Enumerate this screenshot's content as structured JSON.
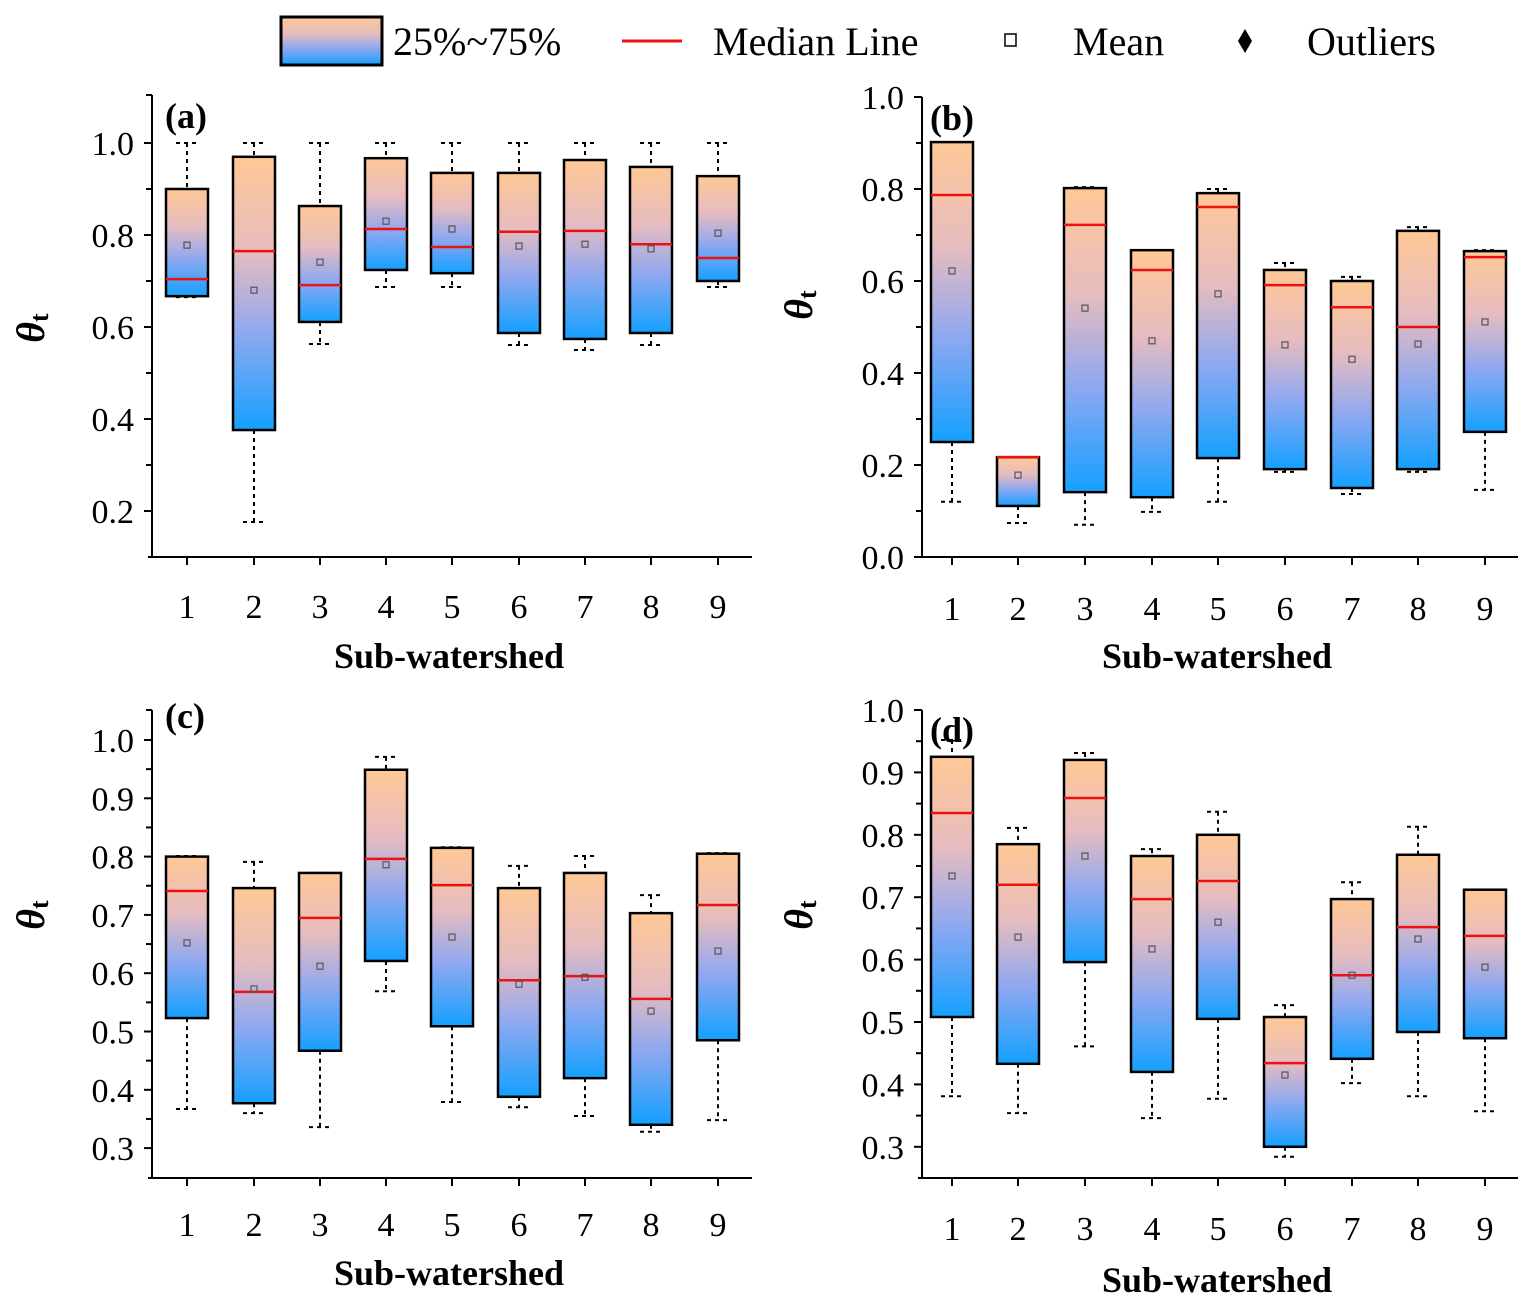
{
  "legend": {
    "items": [
      {
        "key": "box",
        "label": "25%~75%"
      },
      {
        "key": "median",
        "label": "Median Line"
      },
      {
        "key": "mean",
        "label": "Mean"
      },
      {
        "key": "outliers",
        "label": "Outliers"
      }
    ]
  },
  "colors": {
    "box_top": "#ffc896",
    "box_mid": "#e6bcc0",
    "box_lower": "#8ea8f0",
    "box_bottom": "#14a0ff",
    "median": "#ee1111",
    "box_stroke": "#000000",
    "whisker": "#000000",
    "mean_stroke": "#555555"
  },
  "chart_data": [
    {
      "type": "box",
      "panel_label": "(a)",
      "xlabel": "Sub-watershed",
      "ylabel": "θ",
      "ylabel_sub": "t",
      "categories": [
        "1",
        "2",
        "3",
        "4",
        "5",
        "6",
        "7",
        "8",
        "9"
      ],
      "ylim": [
        0.1,
        1.1
      ],
      "yticks": [
        0.2,
        0.4,
        0.6,
        0.8,
        1.0
      ],
      "ytick_labels": [
        "0.2",
        "0.4",
        "0.6",
        "0.8",
        "1.0"
      ],
      "minor_yticks": [
        0.3,
        0.5,
        0.7,
        0.9
      ],
      "boxes": [
        {
          "whisker_low": 0.665,
          "q1": 0.667,
          "median": 0.704,
          "mean": 0.778,
          "q3": 0.9,
          "whisker_high": 1.0
        },
        {
          "whisker_low": 0.176,
          "q1": 0.376,
          "median": 0.765,
          "mean": 0.68,
          "q3": 0.97,
          "whisker_high": 1.0
        },
        {
          "whisker_low": 0.563,
          "q1": 0.611,
          "median": 0.691,
          "mean": 0.741,
          "q3": 0.863,
          "whisker_high": 1.0
        },
        {
          "whisker_low": 0.687,
          "q1": 0.724,
          "median": 0.813,
          "mean": 0.83,
          "q3": 0.967,
          "whisker_high": 1.0
        },
        {
          "whisker_low": 0.687,
          "q1": 0.717,
          "median": 0.774,
          "mean": 0.813,
          "q3": 0.935,
          "whisker_high": 1.0
        },
        {
          "whisker_low": 0.561,
          "q1": 0.587,
          "median": 0.807,
          "mean": 0.776,
          "q3": 0.935,
          "whisker_high": 1.0
        },
        {
          "whisker_low": 0.55,
          "q1": 0.574,
          "median": 0.809,
          "mean": 0.78,
          "q3": 0.963,
          "whisker_high": 1.0
        },
        {
          "whisker_low": 0.561,
          "q1": 0.587,
          "median": 0.78,
          "mean": 0.77,
          "q3": 0.948,
          "whisker_high": 1.0
        },
        {
          "whisker_low": 0.687,
          "q1": 0.7,
          "median": 0.75,
          "mean": 0.804,
          "q3": 0.928,
          "whisker_high": 1.0
        }
      ]
    },
    {
      "type": "box",
      "panel_label": "(b)",
      "xlabel": "Sub-watershed",
      "ylabel": "θ",
      "ylabel_sub": "t",
      "categories": [
        "1",
        "2",
        "3",
        "4",
        "5",
        "6",
        "7",
        "8",
        "9"
      ],
      "ylim": [
        0.0,
        1.0
      ],
      "yticks": [
        0.0,
        0.2,
        0.4,
        0.6,
        0.8,
        1.0
      ],
      "ytick_labels": [
        "0.0",
        "0.2",
        "0.4",
        "0.6",
        "0.8",
        "1.0"
      ],
      "minor_yticks": [
        0.1,
        0.3,
        0.5,
        0.7,
        0.9
      ],
      "boxes": [
        {
          "whisker_low": 0.12,
          "q1": 0.25,
          "median": 0.787,
          "mean": 0.622,
          "q3": 0.902,
          "whisker_high": 0.902
        },
        {
          "whisker_low": 0.074,
          "q1": 0.111,
          "median": 0.217,
          "mean": 0.178,
          "q3": 0.217,
          "whisker_high": 0.217
        },
        {
          "whisker_low": 0.07,
          "q1": 0.141,
          "median": 0.722,
          "mean": 0.541,
          "q3": 0.802,
          "whisker_high": 0.804
        },
        {
          "whisker_low": 0.098,
          "q1": 0.13,
          "median": 0.624,
          "mean": 0.47,
          "q3": 0.667,
          "whisker_high": 0.667
        },
        {
          "whisker_low": 0.12,
          "q1": 0.215,
          "median": 0.761,
          "mean": 0.572,
          "q3": 0.791,
          "whisker_high": 0.8
        },
        {
          "whisker_low": 0.185,
          "q1": 0.191,
          "median": 0.591,
          "mean": 0.461,
          "q3": 0.624,
          "whisker_high": 0.639
        },
        {
          "whisker_low": 0.137,
          "q1": 0.15,
          "median": 0.543,
          "mean": 0.43,
          "q3": 0.6,
          "whisker_high": 0.609
        },
        {
          "whisker_low": 0.185,
          "q1": 0.191,
          "median": 0.5,
          "mean": 0.463,
          "q3": 0.709,
          "whisker_high": 0.717
        },
        {
          "whisker_low": 0.146,
          "q1": 0.272,
          "median": 0.652,
          "mean": 0.511,
          "q3": 0.665,
          "whisker_high": 0.667
        }
      ]
    },
    {
      "type": "box",
      "panel_label": "(c)",
      "xlabel": "Sub-watershed",
      "ylabel": "θ",
      "ylabel_sub": "t",
      "categories": [
        "1",
        "2",
        "3",
        "4",
        "5",
        "6",
        "7",
        "8",
        "9"
      ],
      "ylim": [
        0.25,
        1.05
      ],
      "yticks": [
        0.3,
        0.4,
        0.5,
        0.6,
        0.7,
        0.8,
        0.9,
        1.0
      ],
      "ytick_labels": [
        "0.3",
        "0.4",
        "0.5",
        "0.6",
        "0.7",
        "0.8",
        "0.9",
        "1.0"
      ],
      "minor_yticks": [
        0.35,
        0.45,
        0.55,
        0.65,
        0.75,
        0.85,
        0.95
      ],
      "boxes": [
        {
          "whisker_low": 0.367,
          "q1": 0.523,
          "median": 0.741,
          "mean": 0.652,
          "q3": 0.8,
          "whisker_high": 0.801
        },
        {
          "whisker_low": 0.36,
          "q1": 0.377,
          "median": 0.568,
          "mean": 0.573,
          "q3": 0.746,
          "whisker_high": 0.791
        },
        {
          "whisker_low": 0.336,
          "q1": 0.467,
          "median": 0.695,
          "mean": 0.612,
          "q3": 0.772,
          "whisker_high": 0.772
        },
        {
          "whisker_low": 0.569,
          "q1": 0.621,
          "median": 0.796,
          "mean": 0.786,
          "q3": 0.949,
          "whisker_high": 0.971
        },
        {
          "whisker_low": 0.379,
          "q1": 0.509,
          "median": 0.751,
          "mean": 0.662,
          "q3": 0.815,
          "whisker_high": 0.816
        },
        {
          "whisker_low": 0.37,
          "q1": 0.388,
          "median": 0.588,
          "mean": 0.581,
          "q3": 0.746,
          "whisker_high": 0.784
        },
        {
          "whisker_low": 0.355,
          "q1": 0.42,
          "median": 0.595,
          "mean": 0.593,
          "q3": 0.772,
          "whisker_high": 0.801
        },
        {
          "whisker_low": 0.328,
          "q1": 0.34,
          "median": 0.556,
          "mean": 0.535,
          "q3": 0.703,
          "whisker_high": 0.734
        },
        {
          "whisker_low": 0.348,
          "q1": 0.485,
          "median": 0.717,
          "mean": 0.638,
          "q3": 0.805,
          "whisker_high": 0.806
        }
      ]
    },
    {
      "type": "box",
      "panel_label": "(d)",
      "xlabel": "Sub-watershed",
      "ylabel": "θ",
      "ylabel_sub": "t",
      "categories": [
        "1",
        "2",
        "3",
        "4",
        "5",
        "6",
        "7",
        "8",
        "9"
      ],
      "ylim": [
        0.25,
        1.0
      ],
      "yticks": [
        0.3,
        0.4,
        0.5,
        0.6,
        0.7,
        0.8,
        0.9,
        1.0
      ],
      "ytick_labels": [
        "0.3",
        "0.4",
        "0.5",
        "0.6",
        "0.7",
        "0.8",
        "0.9",
        "1.0"
      ],
      "minor_yticks": [
        0.35,
        0.45,
        0.55,
        0.65,
        0.75,
        0.85,
        0.95
      ],
      "boxes": [
        {
          "whisker_low": 0.381,
          "q1": 0.508,
          "median": 0.835,
          "mean": 0.734,
          "q3": 0.925,
          "whisker_high": 0.952
        },
        {
          "whisker_low": 0.354,
          "q1": 0.433,
          "median": 0.72,
          "mean": 0.636,
          "q3": 0.785,
          "whisker_high": 0.811
        },
        {
          "whisker_low": 0.461,
          "q1": 0.596,
          "median": 0.859,
          "mean": 0.766,
          "q3": 0.92,
          "whisker_high": 0.931
        },
        {
          "whisker_low": 0.346,
          "q1": 0.42,
          "median": 0.697,
          "mean": 0.617,
          "q3": 0.766,
          "whisker_high": 0.777
        },
        {
          "whisker_low": 0.377,
          "q1": 0.505,
          "median": 0.726,
          "mean": 0.66,
          "q3": 0.8,
          "whisker_high": 0.837
        },
        {
          "whisker_low": 0.284,
          "q1": 0.3,
          "median": 0.434,
          "mean": 0.415,
          "q3": 0.508,
          "whisker_high": 0.527
        },
        {
          "whisker_low": 0.402,
          "q1": 0.441,
          "median": 0.575,
          "mean": 0.575,
          "q3": 0.697,
          "whisker_high": 0.724
        },
        {
          "whisker_low": 0.381,
          "q1": 0.484,
          "median": 0.652,
          "mean": 0.633,
          "q3": 0.768,
          "whisker_high": 0.813
        },
        {
          "whisker_low": 0.357,
          "q1": 0.474,
          "median": 0.638,
          "mean": 0.588,
          "q3": 0.712,
          "whisker_high": 0.712
        }
      ]
    }
  ]
}
